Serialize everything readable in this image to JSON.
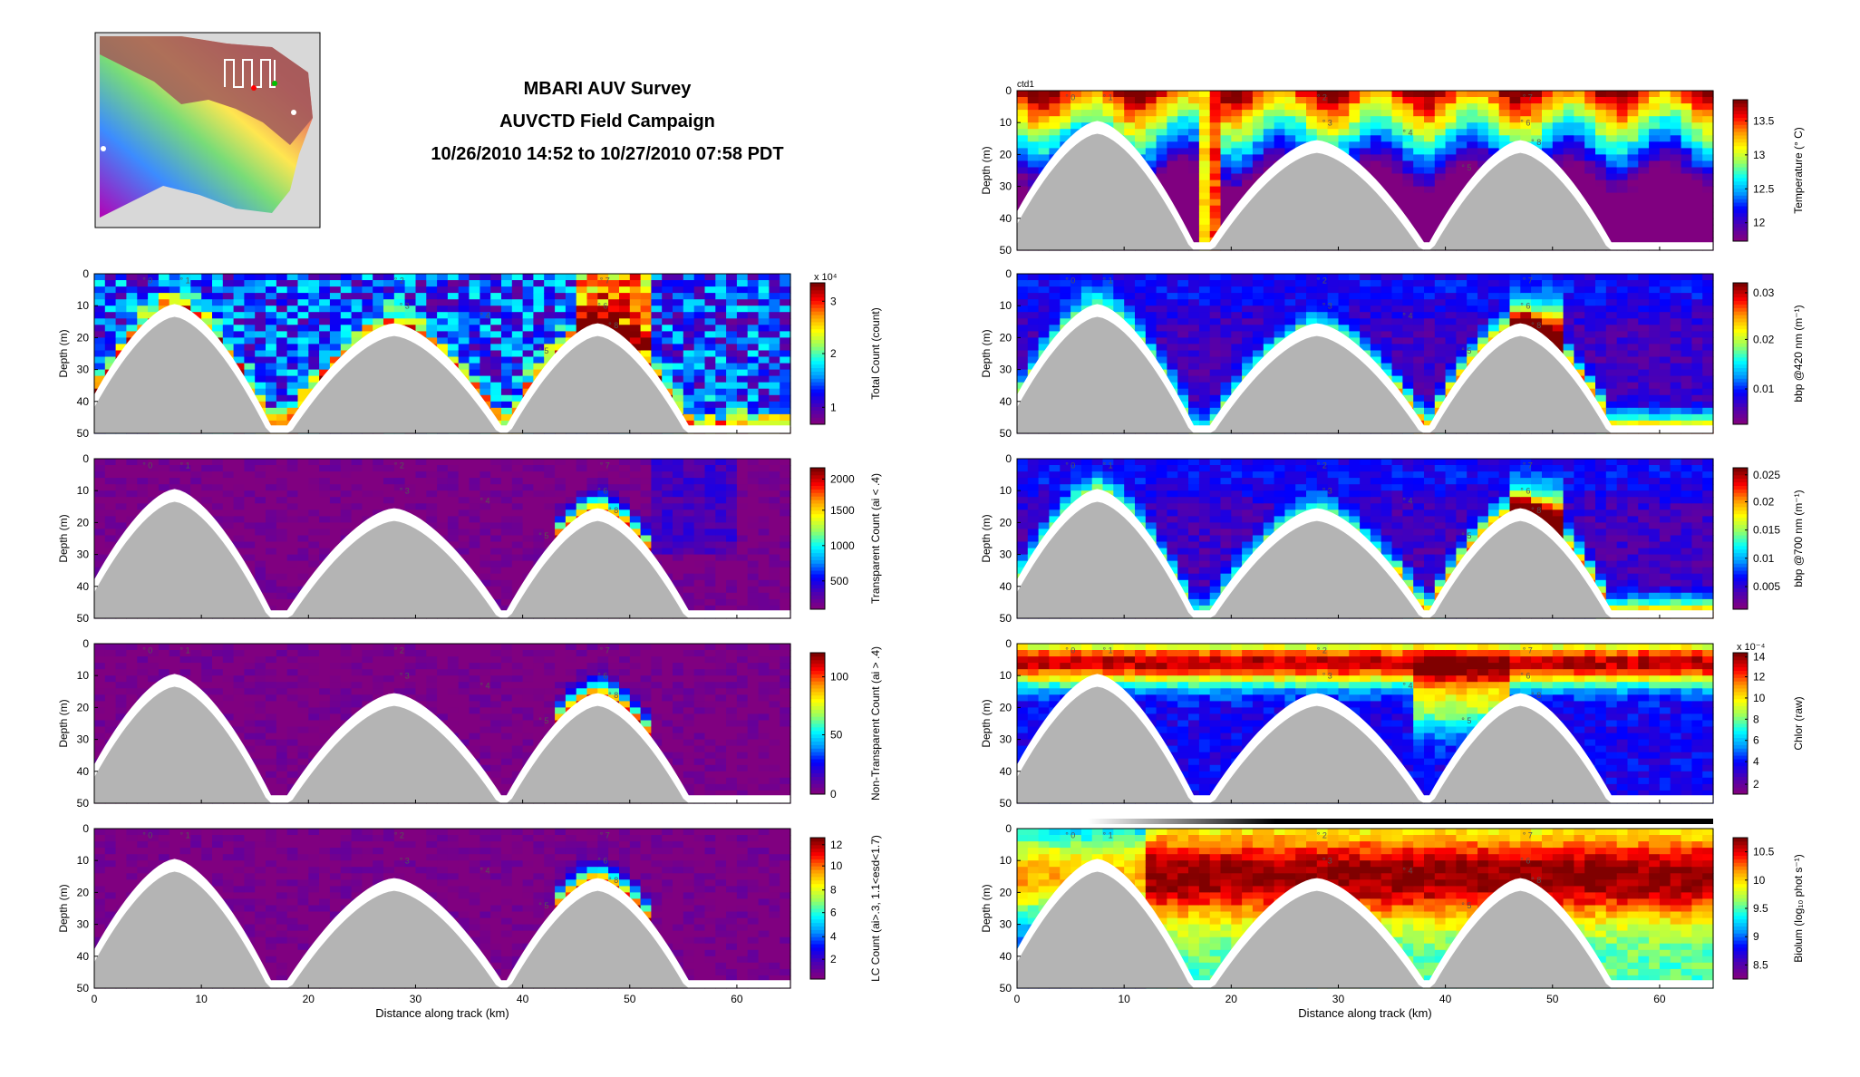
{
  "header": {
    "title_lines": [
      "MBARI AUV Survey",
      "AUVCTD Field Campaign",
      "10/26/2010 14:52 to 10/27/2010 07:58 PDT"
    ]
  },
  "colors": {
    "colormap": [
      "#800080",
      "#4b00b4",
      "#0000ff",
      "#0096ff",
      "#00ffff",
      "#96ff64",
      "#ffff00",
      "#ff9600",
      "#ff0000",
      "#800000"
    ],
    "seafloor": "#b4b4b4",
    "seafloor_edge": "#ffffff",
    "depth_bar": "#000000"
  },
  "chart_data": [
    {
      "id": "total_count",
      "type": "heatmap",
      "column": "left",
      "series_label": "",
      "ylabel": "Depth (m)",
      "xlabel": "",
      "colorbar_label": "Total Count (count)",
      "colorbar_exponent": "x 10⁴",
      "colorbar_ticks": [
        "1",
        "2",
        "3"
      ],
      "colorbar_tick_fracs": [
        0.12,
        0.5,
        0.87
      ],
      "xlim": [
        0,
        65
      ],
      "ylim": [
        0,
        50
      ],
      "xticks": [
        0,
        10,
        20,
        30,
        40,
        50,
        60
      ],
      "yticks": [
        0,
        10,
        20,
        30,
        40,
        50
      ],
      "waypoint_labels": [
        "0",
        "1",
        "2",
        "3",
        "4",
        "5",
        "6",
        "7",
        "8"
      ],
      "base_level": 0.08,
      "bloom_level": 0.8
    },
    {
      "id": "transparent_count",
      "type": "heatmap",
      "column": "left",
      "series_label": "",
      "ylabel": "Depth (m)",
      "xlabel": "",
      "colorbar_label": "Transparent Count (ai < .4)",
      "colorbar_exponent": "",
      "colorbar_ticks": [
        "500",
        "1000",
        "1500",
        "2000"
      ],
      "colorbar_tick_fracs": [
        0.2,
        0.45,
        0.7,
        0.92
      ],
      "xlim": [
        0,
        65
      ],
      "ylim": [
        0,
        50
      ],
      "xticks": [
        0,
        10,
        20,
        30,
        40,
        50,
        60
      ],
      "yticks": [
        0,
        10,
        20,
        30,
        40,
        50
      ],
      "waypoint_labels": [
        "0",
        "1",
        "2",
        "3",
        "4",
        "5",
        "6",
        "7",
        "8"
      ],
      "base_level": 0.0,
      "bloom_level": 0.95
    },
    {
      "id": "nontransparent_count",
      "type": "heatmap",
      "column": "left",
      "series_label": "",
      "ylabel": "Depth (m)",
      "xlabel": "",
      "colorbar_label": "Non-Transparent Count (ai > .4)",
      "colorbar_exponent": "",
      "colorbar_ticks": [
        "0",
        "50",
        "100"
      ],
      "colorbar_tick_fracs": [
        0.0,
        0.42,
        0.83
      ],
      "xlim": [
        0,
        65
      ],
      "ylim": [
        0,
        50
      ],
      "xticks": [
        0,
        10,
        20,
        30,
        40,
        50,
        60
      ],
      "yticks": [
        0,
        10,
        20,
        30,
        40,
        50
      ],
      "waypoint_labels": [
        "0",
        "1",
        "2",
        "3",
        "4",
        "5",
        "6",
        "7",
        "8"
      ],
      "base_level": 0.0,
      "bloom_level": 0.95
    },
    {
      "id": "lc_count",
      "type": "heatmap",
      "column": "left",
      "series_label": "",
      "ylabel": "Depth (m)",
      "xlabel": "Distance along track (km)",
      "colorbar_label": "LC Count (ai>.3, 1.1<esd<1.7)",
      "colorbar_exponent": "",
      "colorbar_ticks": [
        "2",
        "4",
        "6",
        "8",
        "10",
        "12"
      ],
      "colorbar_tick_fracs": [
        0.14,
        0.3,
        0.47,
        0.63,
        0.8,
        0.95
      ],
      "xlim": [
        0,
        65
      ],
      "ylim": [
        0,
        50
      ],
      "xticks": [
        0,
        10,
        20,
        30,
        40,
        50,
        60
      ],
      "yticks": [
        0,
        10,
        20,
        30,
        40,
        50
      ],
      "waypoint_labels": [
        "0",
        "1",
        "2",
        "3",
        "4",
        "5",
        "6",
        "7",
        "8"
      ],
      "base_level": 0.0,
      "bloom_level": 0.95
    },
    {
      "id": "temperature",
      "type": "heatmap",
      "column": "right",
      "series_label": "ctd1",
      "ylabel": "Depth (m)",
      "xlabel": "",
      "colorbar_label": "Temperature (° C)",
      "colorbar_exponent": "",
      "colorbar_ticks": [
        "12",
        "12.5",
        "13",
        "13.5"
      ],
      "colorbar_tick_fracs": [
        0.13,
        0.37,
        0.61,
        0.85
      ],
      "xlim": [
        0,
        65
      ],
      "ylim": [
        0,
        50
      ],
      "xticks": [
        0,
        10,
        20,
        30,
        40,
        50,
        60
      ],
      "yticks": [
        0,
        10,
        20,
        30,
        40,
        50
      ],
      "waypoint_labels": [
        "0",
        "1",
        "2",
        "3",
        "4",
        "5",
        "6",
        "7",
        "8"
      ],
      "base_level": 0.9,
      "bloom_level": 0.05
    },
    {
      "id": "bbp420",
      "type": "heatmap",
      "column": "right",
      "series_label": "",
      "ylabel": "Depth (m)",
      "xlabel": "",
      "colorbar_label": "bbp @420 nm (m⁻¹)",
      "colorbar_exponent": "",
      "colorbar_ticks": [
        "0.01",
        "0.02",
        "0.03"
      ],
      "colorbar_tick_fracs": [
        0.25,
        0.6,
        0.93
      ],
      "xlim": [
        0,
        65
      ],
      "ylim": [
        0,
        50
      ],
      "xticks": [
        0,
        10,
        20,
        30,
        40,
        50,
        60
      ],
      "yticks": [
        0,
        10,
        20,
        30,
        40,
        50
      ],
      "waypoint_labels": [
        "0",
        "1",
        "2",
        "3",
        "4",
        "5",
        "6",
        "7",
        "8"
      ],
      "base_level": 0.1,
      "bloom_level": 0.95
    },
    {
      "id": "bbp700",
      "type": "heatmap",
      "column": "right",
      "series_label": "",
      "ylabel": "Depth (m)",
      "xlabel": "",
      "colorbar_label": "bbp @700 nm (m⁻¹)",
      "colorbar_exponent": "",
      "colorbar_ticks": [
        "0.005",
        "0.01",
        "0.015",
        "0.02",
        "0.025"
      ],
      "colorbar_tick_fracs": [
        0.16,
        0.36,
        0.56,
        0.76,
        0.95
      ],
      "xlim": [
        0,
        65
      ],
      "ylim": [
        0,
        50
      ],
      "xticks": [
        0,
        10,
        20,
        30,
        40,
        50,
        60
      ],
      "yticks": [
        0,
        10,
        20,
        30,
        40,
        50
      ],
      "waypoint_labels": [
        "0",
        "1",
        "2",
        "3",
        "4",
        "5",
        "6",
        "7",
        "8"
      ],
      "base_level": 0.1,
      "bloom_level": 0.95
    },
    {
      "id": "chlor",
      "type": "heatmap",
      "column": "right",
      "series_label": "",
      "ylabel": "Depth (m)",
      "xlabel": "",
      "colorbar_label": "Chlor (raw)",
      "colorbar_exponent": "x 10⁻⁴",
      "colorbar_ticks": [
        "2",
        "4",
        "6",
        "8",
        "10",
        "12",
        "14"
      ],
      "colorbar_tick_fracs": [
        0.07,
        0.23,
        0.38,
        0.53,
        0.68,
        0.83,
        0.97
      ],
      "xlim": [
        0,
        65
      ],
      "ylim": [
        0,
        50
      ],
      "xticks": [
        0,
        10,
        20,
        30,
        40,
        50,
        60
      ],
      "yticks": [
        0,
        10,
        20,
        30,
        40,
        50
      ],
      "waypoint_labels": [
        "0",
        "1",
        "2",
        "3",
        "4",
        "5",
        "6",
        "7",
        "8"
      ],
      "base_level": 0.15,
      "bloom_level": 0.92
    },
    {
      "id": "biolum",
      "type": "heatmap",
      "column": "right",
      "series_label": "",
      "ylabel": "Depth (m)",
      "xlabel": "Distance along track (km)",
      "colorbar_label": "Biolum (log₁₀ phot s⁻¹)",
      "colorbar_exponent": "",
      "colorbar_ticks": [
        "8.5",
        "9",
        "9.5",
        "10",
        "10.5"
      ],
      "colorbar_tick_fracs": [
        0.1,
        0.3,
        0.5,
        0.7,
        0.9
      ],
      "xlim": [
        0,
        65
      ],
      "ylim": [
        0,
        50
      ],
      "xticks": [
        0,
        10,
        20,
        30,
        40,
        50,
        60
      ],
      "yticks": [
        0,
        10,
        20,
        30,
        40,
        50
      ],
      "waypoint_labels": [
        "0",
        "1",
        "2",
        "3",
        "4",
        "5",
        "6",
        "7",
        "8"
      ],
      "base_level": 0.45,
      "bloom_level": 0.9
    }
  ]
}
